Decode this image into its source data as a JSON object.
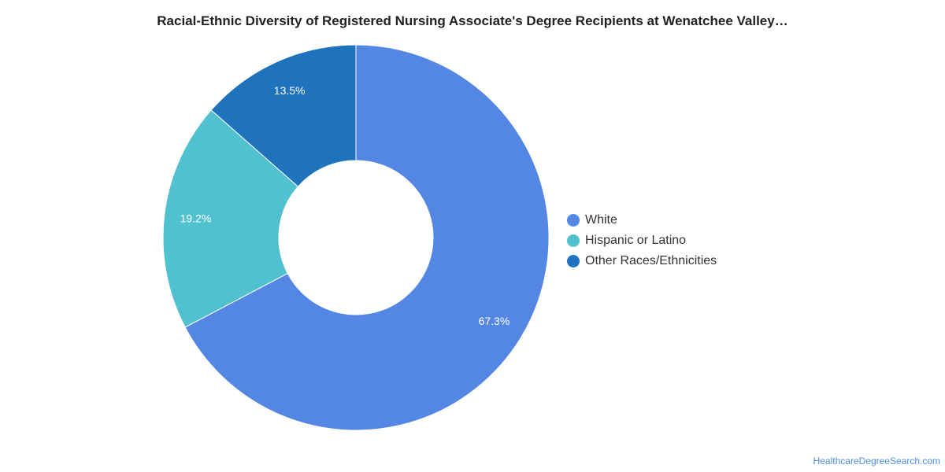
{
  "chart_data": {
    "type": "pie",
    "title": "Racial-Ethnic Diversity of Registered Nursing Associate's Degree Recipients at Wenatchee Valley…",
    "donut": true,
    "legend_position": "right",
    "slices": [
      {
        "label": "White",
        "value": 67.3,
        "value_label": "67.3%",
        "color": "#5486e3"
      },
      {
        "label": "Hispanic or Latino",
        "value": 19.2,
        "value_label": "19.2%",
        "color": "#52c1cf"
      },
      {
        "label": "Other Races/Ethnicities",
        "value": 13.5,
        "value_label": "13.5%",
        "color": "#1f73bc"
      }
    ]
  },
  "source": "HealthcareDegreeSearch.com"
}
